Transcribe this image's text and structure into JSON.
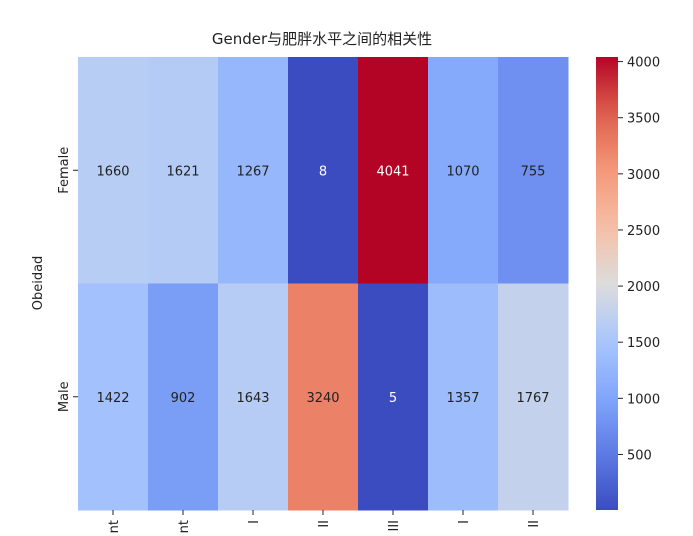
{
  "chart_data": {
    "type": "heatmap",
    "title": "Gender与肥胖水平之间的相关性",
    "ylabel": "Obeidad",
    "xlabel": "",
    "rows": [
      "Female",
      "Male"
    ],
    "columns": [
      "nt",
      "nt",
      "I",
      "II",
      "III",
      "I",
      "II"
    ],
    "values": [
      [
        1660,
        1621,
        1267,
        8,
        4041,
        1070,
        755
      ],
      [
        1422,
        902,
        1643,
        3240,
        5,
        1357,
        1767
      ]
    ],
    "colormap": "coolwarm",
    "color_range": [
      5,
      4041
    ],
    "colorbar_ticks": [
      500,
      1000,
      1500,
      2000,
      2500,
      3000,
      3500,
      4000
    ],
    "colors": {
      "low": "#3b4cc0",
      "mid": "#dddcdc",
      "high": "#b40426"
    }
  }
}
